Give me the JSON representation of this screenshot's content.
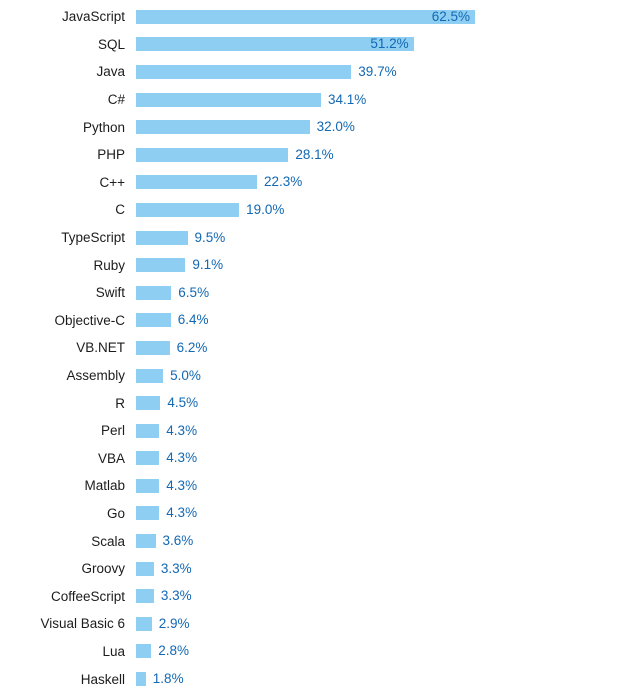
{
  "chart_data": {
    "type": "bar",
    "orientation": "horizontal",
    "title": "",
    "xlabel": "",
    "ylabel": "",
    "unit": "%",
    "xlim": [
      0,
      65
    ],
    "grid": false,
    "legend": false,
    "categories": [
      "JavaScript",
      "SQL",
      "Java",
      "C#",
      "Python",
      "PHP",
      "C++",
      "C",
      "TypeScript",
      "Ruby",
      "Swift",
      "Objective-C",
      "VB.NET",
      "Assembly",
      "R",
      "Perl",
      "VBA",
      "Matlab",
      "Go",
      "Scala",
      "Groovy",
      "CoffeeScript",
      "Visual Basic 6",
      "Lua",
      "Haskell"
    ],
    "values": [
      62.5,
      51.2,
      39.7,
      34.1,
      32.0,
      28.1,
      22.3,
      19.0,
      9.5,
      9.1,
      6.5,
      6.4,
      6.2,
      5.0,
      4.5,
      4.3,
      4.3,
      4.3,
      4.3,
      3.6,
      3.3,
      3.3,
      2.9,
      2.8,
      1.8
    ],
    "value_labels": [
      "62.5%",
      "51.2%",
      "39.7%",
      "34.1%",
      "32.0%",
      "28.1%",
      "22.3%",
      "19.0%",
      "9.5%",
      "9.1%",
      "6.5%",
      "6.4%",
      "6.2%",
      "5.0%",
      "4.5%",
      "4.3%",
      "4.3%",
      "4.3%",
      "4.3%",
      "3.6%",
      "3.3%",
      "3.3%",
      "2.9%",
      "2.8%",
      "1.8%"
    ],
    "inside_value_labels": [
      "JavaScript",
      "SQL"
    ]
  },
  "colors": {
    "bar": "#8DCEF2",
    "value_text": "#1268B3",
    "category_text": "#1C1C1C",
    "background": "#FFFFFF"
  }
}
